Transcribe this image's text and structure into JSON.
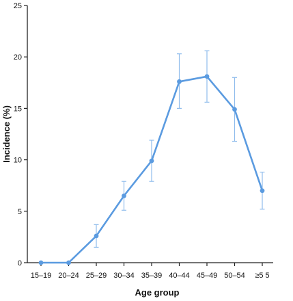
{
  "chart_data": {
    "type": "line",
    "title": "",
    "xlabel": "Age group",
    "ylabel": "Incidence (%)",
    "ylim": [
      0,
      25
    ],
    "yticks": [
      0,
      5,
      10,
      15,
      20,
      25
    ],
    "categories": [
      "15–19",
      "20–24",
      "25–29",
      "30–34",
      "35–39",
      "40–44",
      "45–49",
      "50–54",
      "≥5 5"
    ],
    "series": [
      {
        "values": [
          0,
          0,
          2.6,
          6.5,
          9.9,
          17.6,
          18.1,
          14.9,
          7.0
        ],
        "err_low": [
          0,
          0,
          1.5,
          5.1,
          7.9,
          15.0,
          15.6,
          11.8,
          5.2
        ],
        "err_high": [
          0,
          0,
          3.7,
          7.9,
          11.9,
          20.3,
          20.6,
          18.0,
          8.8
        ]
      }
    ],
    "grid": false,
    "legend": "none",
    "colors": {
      "line": "#5b9be0",
      "errorbar": "#8fbcec",
      "axis": "#222222"
    }
  }
}
